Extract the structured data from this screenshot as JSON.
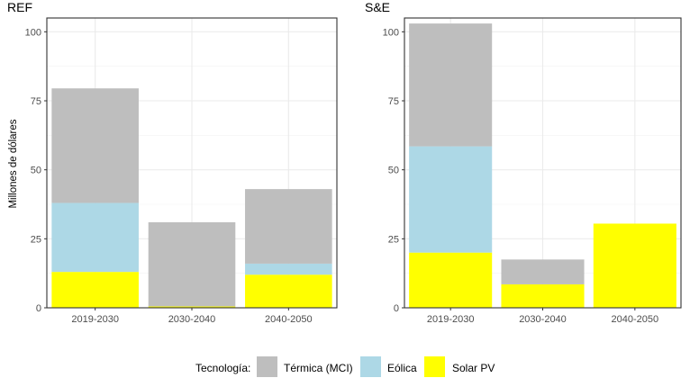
{
  "chart_data": {
    "type": "bar",
    "stacked": true,
    "ylabel": "Millones de dólares",
    "ylim": [
      0,
      105
    ],
    "yticks": [
      0,
      25,
      50,
      75,
      100
    ],
    "grid": true,
    "legend_position": "bottom",
    "legend": {
      "title": "Tecnología:",
      "items": [
        {
          "name": "Térmica (MCI)",
          "color": "#bebebe"
        },
        {
          "name": "Eólica",
          "color": "#add8e6"
        },
        {
          "name": "Solar PV",
          "color": "#ffff00"
        }
      ]
    },
    "panels": [
      {
        "title": "REF",
        "categories": [
          "2019-2030",
          "2030-2040",
          "2040-2050"
        ],
        "series": [
          {
            "name": "Solar PV",
            "values": [
              13,
              0.5,
              12
            ]
          },
          {
            "name": "Eólica",
            "values": [
              25,
              0,
              4
            ]
          },
          {
            "name": "Térmica (MCI)",
            "values": [
              41.5,
              30.5,
              27
            ]
          }
        ]
      },
      {
        "title": "S&E",
        "categories": [
          "2019-2030",
          "2030-2040",
          "2040-2050"
        ],
        "series": [
          {
            "name": "Solar PV",
            "values": [
              20,
              8.5,
              30.5
            ]
          },
          {
            "name": "Eólica",
            "values": [
              38.5,
              0,
              0
            ]
          },
          {
            "name": "Térmica (MCI)",
            "values": [
              44.5,
              9,
              0
            ]
          }
        ]
      }
    ]
  }
}
